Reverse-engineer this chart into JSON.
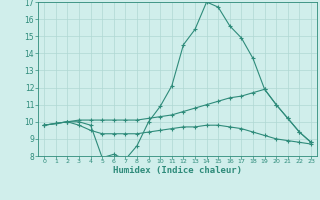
{
  "xlabel": "Humidex (Indice chaleur)",
  "x": [
    0,
    1,
    2,
    3,
    4,
    5,
    6,
    7,
    8,
    9,
    10,
    11,
    12,
    13,
    14,
    15,
    16,
    17,
    18,
    19,
    20,
    21,
    22,
    23
  ],
  "curve1": [
    9.8,
    9.9,
    10.0,
    10.0,
    9.8,
    7.9,
    8.1,
    7.8,
    8.6,
    10.0,
    10.9,
    12.1,
    14.5,
    15.4,
    17.0,
    16.7,
    15.6,
    14.9,
    13.7,
    11.9,
    11.0,
    10.2,
    9.4,
    8.8
  ],
  "curve2": [
    9.8,
    9.9,
    10.0,
    10.1,
    10.1,
    10.1,
    10.1,
    10.1,
    10.1,
    10.2,
    10.3,
    10.4,
    10.6,
    10.8,
    11.0,
    11.2,
    11.4,
    11.5,
    11.7,
    11.9,
    11.0,
    10.2,
    9.4,
    8.8
  ],
  "curve3": [
    9.8,
    9.9,
    10.0,
    9.8,
    9.5,
    9.3,
    9.3,
    9.3,
    9.3,
    9.4,
    9.5,
    9.6,
    9.7,
    9.7,
    9.8,
    9.8,
    9.7,
    9.6,
    9.4,
    9.2,
    9.0,
    8.9,
    8.8,
    8.7
  ],
  "line_color": "#2e8b7a",
  "bg_color": "#d0eeeb",
  "grid_color": "#b0d8d4",
  "ylim": [
    8,
    17
  ],
  "xlim": [
    -0.5,
    23.5
  ]
}
